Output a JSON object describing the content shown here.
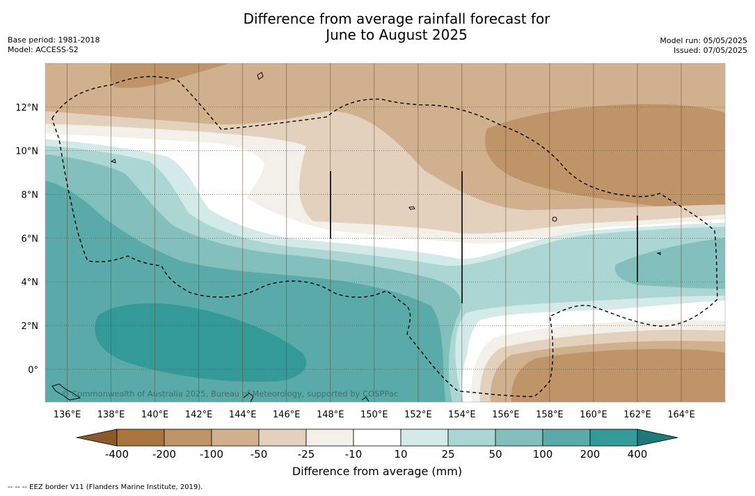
{
  "title": {
    "line1": "Difference from average rainfall forecast for",
    "line2": "June to August 2025"
  },
  "meta_left": {
    "base_period": "Base period: 1981-2018",
    "model": "Model: ACCESS-S2"
  },
  "meta_right": {
    "model_run": "Model run: 05/05/2025",
    "issued": "Issued: 07/05/2025"
  },
  "map": {
    "extent": {
      "lon": [
        135,
        166
      ],
      "lat": [
        -1.5,
        14
      ]
    },
    "lat_ticks": [
      {
        "value": 12,
        "label": "12°N"
      },
      {
        "value": 10,
        "label": "10°N"
      },
      {
        "value": 8,
        "label": "8°N"
      },
      {
        "value": 6,
        "label": "6°N"
      },
      {
        "value": 4,
        "label": "4°N"
      },
      {
        "value": 2,
        "label": "2°N"
      },
      {
        "value": 0,
        "label": "0°"
      }
    ],
    "lon_ticks": [
      {
        "value": 136,
        "label": "136°E"
      },
      {
        "value": 138,
        "label": "138°E"
      },
      {
        "value": 140,
        "label": "140°E"
      },
      {
        "value": 142,
        "label": "142°E"
      },
      {
        "value": 144,
        "label": "144°E"
      },
      {
        "value": 146,
        "label": "146°E"
      },
      {
        "value": 148,
        "label": "148°E"
      },
      {
        "value": 150,
        "label": "150°E"
      },
      {
        "value": 152,
        "label": "152°E"
      },
      {
        "value": 154,
        "label": "154°E"
      },
      {
        "value": 156,
        "label": "156°E"
      },
      {
        "value": 158,
        "label": "158°E"
      },
      {
        "value": 160,
        "label": "160°E"
      },
      {
        "value": 162,
        "label": "162°E"
      },
      {
        "value": 164,
        "label": "164°E"
      }
    ],
    "copyright": "© Commonwealth of Australia 2025, Bureau of Meteorology, supported by COSPPac",
    "layers": {
      "rainfall_difference": "filled-contours",
      "eez_border": "dashed-line",
      "meridian_grid_color": "#6b4f32",
      "parallel_grid_style": "dotted"
    }
  },
  "colorbar": {
    "title": "Difference from average (mm)",
    "ticks": [
      "-400",
      "-200",
      "-100",
      "-50",
      "-25",
      "-10",
      "10",
      "25",
      "50",
      "100",
      "200",
      "400"
    ],
    "under_color": "#8c5a2a",
    "over_color": "#1e7a78",
    "colors": [
      "#a8753f",
      "#bf9468",
      "#d1b08e",
      "#e3d1be",
      "#f3efe9",
      "#ffffff",
      "#d4eae9",
      "#acd6d4",
      "#82bfbd",
      "#5aaaa9",
      "#349a98"
    ]
  },
  "footnote": "--  --  -- EEZ border V11 (Flanders Marine Institute, 2019)."
}
